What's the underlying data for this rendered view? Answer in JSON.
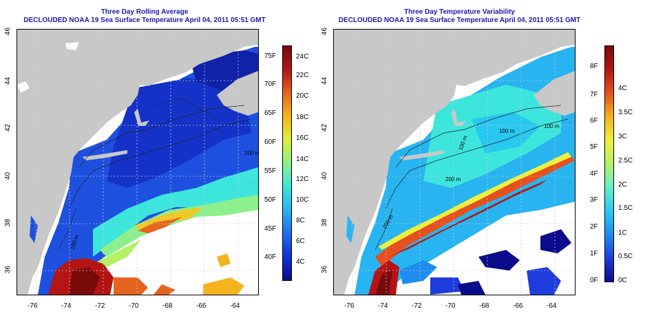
{
  "left_panel": {
    "title_line1": "Three Day Rolling Average",
    "title_line2": "DECLOUDED NOAA 19 Sea Surface Temperature April 04, 2011 05:51 GMT",
    "x_ticks": [
      "-76",
      "-74",
      "-72",
      "-70",
      "-68",
      "-66",
      "-64"
    ],
    "y_ticks": [
      "46",
      "44",
      "42",
      "40",
      "38",
      "36"
    ],
    "contours": [
      "100 m",
      "200 m"
    ],
    "colorbar_f": [
      "75F",
      "70F",
      "65F",
      "60F",
      "55F",
      "50F",
      "45F",
      "40F"
    ],
    "colorbar_c": [
      "24C",
      "22C",
      "20C",
      "18C",
      "16C",
      "14C",
      "12C",
      "10C",
      "8C",
      "6C",
      "4C"
    ]
  },
  "right_panel": {
    "title_line1": "Three Day Temperature Variability",
    "title_line2": "DECLOUDED NOAA 19 Sea Surface Temperature April 04, 2011 05:51 GMT",
    "x_ticks": [
      "-76",
      "-74",
      "-72",
      "-70",
      "-68",
      "-66",
      "-64"
    ],
    "y_ticks": [
      "46",
      "44",
      "42",
      "40",
      "38",
      "36"
    ],
    "contours": [
      "200 m",
      "200 m",
      "100 m",
      "100 m",
      "100 m"
    ],
    "colorbar_f": [
      "8F",
      "7F",
      "6F",
      "5F",
      "4F",
      "3F",
      "2F",
      "1F",
      "0F"
    ],
    "colorbar_c": [
      "4C",
      "3.5C",
      "3C",
      "2.5C",
      "2C",
      "1.5C",
      "1C",
      "0.5C",
      "0C"
    ]
  },
  "colors": {
    "land": "#c8c8c8",
    "title": "#1a1aa8",
    "sst_scale": [
      "#0a0a8c",
      "#1030d8",
      "#1e6ef0",
      "#28b4f0",
      "#3ce6dc",
      "#8cf08c",
      "#dcf03c",
      "#f5b41e",
      "#e6641e",
      "#b41414",
      "#780a0a"
    ],
    "var_scale": [
      "#0a0a8c",
      "#1e3cdc",
      "#1e8cf0",
      "#28c8f0",
      "#64f0c8",
      "#b4f064",
      "#f0f03c",
      "#f0b41e",
      "#e6501e",
      "#b41414",
      "#780a0a"
    ]
  }
}
